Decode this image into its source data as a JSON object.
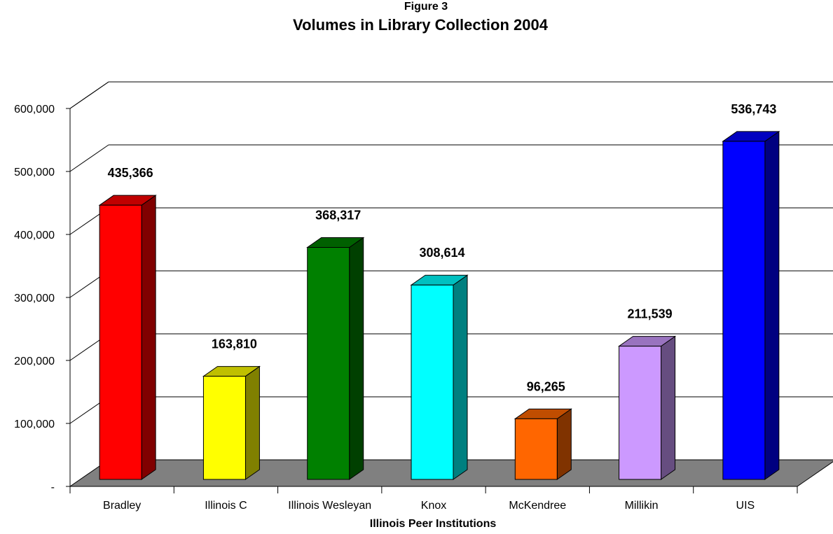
{
  "chart_data": {
    "type": "bar",
    "figure_label": "Figure 3",
    "title": "Volumes in Library Collection 2004",
    "xlabel": "Illinois Peer Institutions",
    "ylabel": "",
    "categories": [
      "Bradley",
      "Illinois C",
      "Illinois Wesleyan",
      "Knox",
      "McKendree",
      "Millikin",
      "UIS"
    ],
    "values": [
      435366,
      163810,
      368317,
      308614,
      96265,
      211539,
      536743
    ],
    "data_labels": [
      "435,366",
      "163,810",
      "368,317",
      "308,614",
      "96,265",
      "211,539",
      "536,743"
    ],
    "ylim": [
      0,
      600000
    ],
    "yticks": [
      0,
      100000,
      200000,
      300000,
      400000,
      500000,
      600000
    ],
    "ytick_labels": [
      "-",
      "100,000",
      "200,000",
      "300,000",
      "400,000",
      "500,000",
      "600,000"
    ],
    "grid": true,
    "legend": "none",
    "colors": [
      "#ff0000",
      "#ffff00",
      "#008000",
      "#00ffff",
      "#ff6600",
      "#cc99ff",
      "#0000ff"
    ],
    "side_colors": [
      "#800000",
      "#808000",
      "#004000",
      "#008080",
      "#803300",
      "#664d80",
      "#000080"
    ],
    "top_colors": [
      "#c00000",
      "#c0c000",
      "#006000",
      "#00c0c0",
      "#c04d00",
      "#9973bf",
      "#0000c0"
    ],
    "floor_color": "#808080"
  }
}
